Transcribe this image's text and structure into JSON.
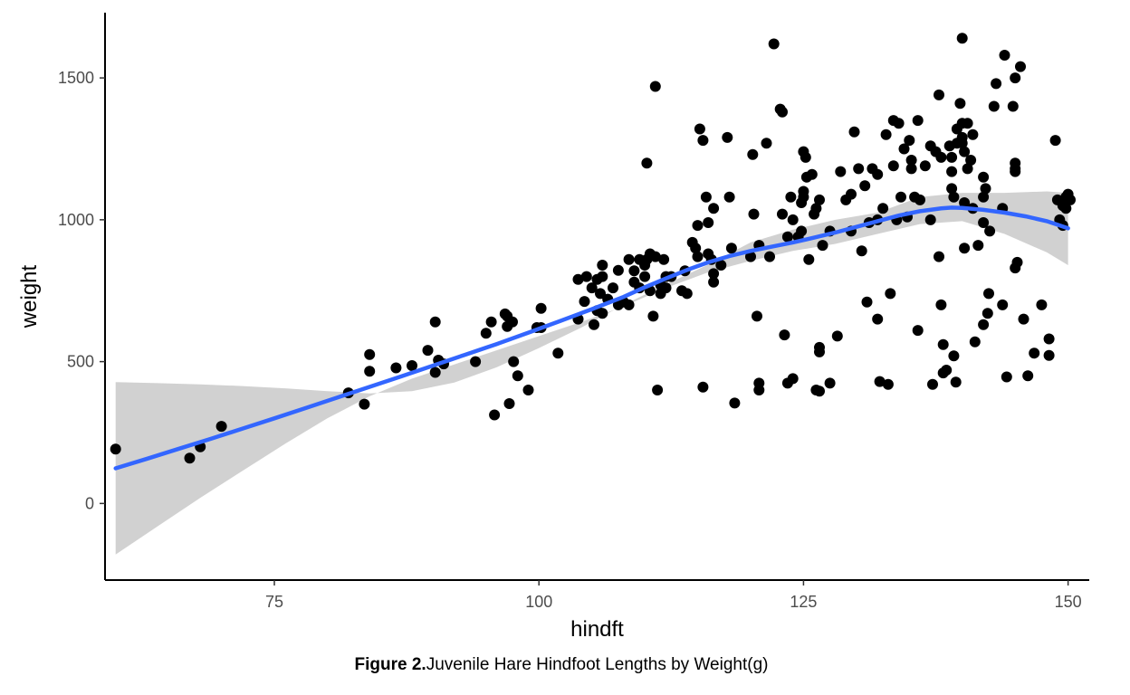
{
  "chart_data": {
    "type": "scatter",
    "xlabel": "hindft",
    "ylabel": "weight",
    "xlim": [
      59,
      152
    ],
    "ylim": [
      -270,
      1730
    ],
    "x_ticks": [
      75,
      100,
      125,
      150
    ],
    "y_ticks": [
      0,
      500,
      1000,
      1500
    ],
    "x_tick_labels": [
      "75",
      "100",
      "125",
      "150"
    ],
    "y_tick_labels": [
      "0",
      "500",
      "1000",
      "1500"
    ],
    "grid": false,
    "caption_bold": "Figure 2.",
    "caption_text": "Juvenile Hare Hindfoot Lengths by Weight(g)",
    "points_color": "#000000",
    "smooth_color": "#3366ff",
    "ribbon_color": "#bebebe",
    "points": [
      [
        60,
        192
      ],
      [
        67,
        160
      ],
      [
        68,
        200
      ],
      [
        70,
        272
      ],
      [
        82,
        390
      ],
      [
        83.5,
        350
      ],
      [
        84,
        525
      ],
      [
        84,
        466
      ],
      [
        86.5,
        478
      ],
      [
        88,
        486
      ],
      [
        89.5,
        540
      ],
      [
        90.2,
        640
      ],
      [
        90.2,
        462
      ],
      [
        90.5,
        505
      ],
      [
        91,
        492
      ],
      [
        94,
        500
      ],
      [
        95,
        600
      ],
      [
        95.5,
        640
      ],
      [
        95.8,
        312
      ],
      [
        96.8,
        668
      ],
      [
        97,
        660
      ],
      [
        97.5,
        640
      ],
      [
        97,
        624
      ],
      [
        97.2,
        352
      ],
      [
        97.6,
        500
      ],
      [
        98,
        450
      ],
      [
        99,
        400
      ],
      [
        99.8,
        620
      ],
      [
        100.2,
        688
      ],
      [
        100.2,
        620
      ],
      [
        101.8,
        530
      ],
      [
        103.7,
        650
      ],
      [
        103.7,
        790
      ],
      [
        104.3,
        712
      ],
      [
        104.5,
        800
      ],
      [
        105,
        760
      ],
      [
        105.5,
        790
      ],
      [
        105.5,
        680
      ],
      [
        105.2,
        630
      ],
      [
        105.8,
        740
      ],
      [
        106,
        670
      ],
      [
        106,
        840
      ],
      [
        106,
        800
      ],
      [
        106.5,
        720
      ],
      [
        107,
        760
      ],
      [
        107.5,
        822
      ],
      [
        107.5,
        700
      ],
      [
        108,
        710
      ],
      [
        108.5,
        860
      ],
      [
        108.5,
        700
      ],
      [
        109,
        820
      ],
      [
        109,
        780
      ],
      [
        109.5,
        860
      ],
      [
        109.5,
        760
      ],
      [
        110,
        840
      ],
      [
        110,
        800
      ],
      [
        110.2,
        860
      ],
      [
        110.2,
        1200
      ],
      [
        110.5,
        750
      ],
      [
        110.5,
        880
      ],
      [
        110.8,
        660
      ],
      [
        111,
        1470
      ],
      [
        111,
        870
      ],
      [
        111.2,
        400
      ],
      [
        111.5,
        740
      ],
      [
        111.5,
        770
      ],
      [
        111.8,
        860
      ],
      [
        112,
        800
      ],
      [
        112,
        760
      ],
      [
        112.5,
        800
      ],
      [
        113.5,
        750
      ],
      [
        113.8,
        820
      ],
      [
        114,
        740
      ],
      [
        114.5,
        920
      ],
      [
        114.8,
        900
      ],
      [
        115,
        870
      ],
      [
        115.2,
        1320
      ],
      [
        115,
        980
      ],
      [
        115.5,
        1280
      ],
      [
        115.5,
        410
      ],
      [
        115.8,
        1080
      ],
      [
        116,
        990
      ],
      [
        116,
        880
      ],
      [
        116.3,
        860
      ],
      [
        116.5,
        780
      ],
      [
        116.5,
        810
      ],
      [
        116.5,
        1040
      ],
      [
        117.2,
        840
      ],
      [
        117.8,
        1290
      ],
      [
        118,
        1080
      ],
      [
        118.2,
        900
      ],
      [
        118.5,
        354
      ],
      [
        120,
        870
      ],
      [
        120.2,
        1230
      ],
      [
        120.3,
        1020
      ],
      [
        120.6,
        660
      ],
      [
        120.8,
        910
      ],
      [
        120.8,
        424
      ],
      [
        120.8,
        400
      ],
      [
        121.5,
        1270
      ],
      [
        121.8,
        870
      ],
      [
        122.2,
        1620
      ],
      [
        122.8,
        1390
      ],
      [
        123,
        1020
      ],
      [
        123,
        1380
      ],
      [
        123.2,
        594
      ],
      [
        123.5,
        940
      ],
      [
        123.5,
        424
      ],
      [
        123.8,
        1080
      ],
      [
        124,
        1000
      ],
      [
        124,
        440
      ],
      [
        124.5,
        940
      ],
      [
        124.8,
        960
      ],
      [
        124.8,
        1060
      ],
      [
        125,
        1080
      ],
      [
        125,
        1100
      ],
      [
        125,
        1240
      ],
      [
        125.2,
        1220
      ],
      [
        125.3,
        1150
      ],
      [
        125.5,
        860
      ],
      [
        125.8,
        1160
      ],
      [
        126,
        1020
      ],
      [
        126.2,
        1040
      ],
      [
        126.5,
        1070
      ],
      [
        126.2,
        400
      ],
      [
        126.5,
        396
      ],
      [
        126.5,
        550
      ],
      [
        126.5,
        534
      ],
      [
        126.8,
        910
      ],
      [
        127.5,
        960
      ],
      [
        127.5,
        424
      ],
      [
        128.2,
        590
      ],
      [
        128.5,
        1170
      ],
      [
        129,
        1070
      ],
      [
        129.5,
        1090
      ],
      [
        129.5,
        960
      ],
      [
        129.8,
        1310
      ],
      [
        130.2,
        1180
      ],
      [
        130.5,
        890
      ],
      [
        130.8,
        1120
      ],
      [
        131,
        710
      ],
      [
        131.2,
        990
      ],
      [
        131.5,
        1180
      ],
      [
        132,
        1160
      ],
      [
        132,
        1000
      ],
      [
        132,
        650
      ],
      [
        132.2,
        430
      ],
      [
        132.5,
        1040
      ],
      [
        132.8,
        1300
      ],
      [
        133,
        420
      ],
      [
        133.2,
        740
      ],
      [
        133.5,
        1350
      ],
      [
        133.5,
        1190
      ],
      [
        133.8,
        1000
      ],
      [
        134,
        1340
      ],
      [
        134.2,
        1080
      ],
      [
        134.5,
        1250
      ],
      [
        134.8,
        1010
      ],
      [
        135,
        1280
      ],
      [
        135.2,
        1210
      ],
      [
        135.2,
        1180
      ],
      [
        135.5,
        1080
      ],
      [
        135.8,
        1350
      ],
      [
        135.8,
        610
      ],
      [
        136,
        1070
      ],
      [
        136.5,
        1190
      ],
      [
        137,
        1260
      ],
      [
        137,
        1000
      ],
      [
        137.2,
        420
      ],
      [
        137.5,
        1240
      ],
      [
        137.8,
        1440
      ],
      [
        137.8,
        870
      ],
      [
        138,
        1220
      ],
      [
        138,
        700
      ],
      [
        138.2,
        560
      ],
      [
        138.2,
        460
      ],
      [
        138.5,
        470
      ],
      [
        138.8,
        1260
      ],
      [
        139,
        1220
      ],
      [
        139,
        1170
      ],
      [
        139,
        1110
      ],
      [
        139.2,
        1080
      ],
      [
        139.2,
        520
      ],
      [
        139.4,
        428
      ],
      [
        139.5,
        1320
      ],
      [
        139.5,
        1270
      ],
      [
        139.8,
        1410
      ],
      [
        140,
        1640
      ],
      [
        140,
        1340
      ],
      [
        140,
        1290
      ],
      [
        140,
        1270
      ],
      [
        140.2,
        1240
      ],
      [
        140.2,
        1060
      ],
      [
        140.2,
        900
      ],
      [
        140.5,
        1340
      ],
      [
        140.5,
        1180
      ],
      [
        140.8,
        1210
      ],
      [
        141,
        1300
      ],
      [
        141,
        1040
      ],
      [
        141.2,
        570
      ],
      [
        141.5,
        910
      ],
      [
        142,
        1080
      ],
      [
        142,
        1150
      ],
      [
        142,
        990
      ],
      [
        142,
        630
      ],
      [
        142.2,
        1110
      ],
      [
        142.4,
        670
      ],
      [
        142.5,
        740
      ],
      [
        142.6,
        960
      ],
      [
        143,
        1400
      ],
      [
        143.2,
        1480
      ],
      [
        143.8,
        1040
      ],
      [
        143.8,
        700
      ],
      [
        144,
        1580
      ],
      [
        144.2,
        446
      ],
      [
        144.8,
        1400
      ],
      [
        145,
        1500
      ],
      [
        145,
        1200
      ],
      [
        145,
        1170
      ],
      [
        145,
        1180
      ],
      [
        145,
        830
      ],
      [
        145.2,
        850
      ],
      [
        145.5,
        1540
      ],
      [
        145.8,
        650
      ],
      [
        146.2,
        450
      ],
      [
        146.8,
        530
      ],
      [
        147.5,
        700
      ],
      [
        148.2,
        580
      ],
      [
        148.2,
        522
      ],
      [
        148.8,
        1280
      ],
      [
        149,
        1070
      ],
      [
        149.2,
        1000
      ],
      [
        149.5,
        980
      ],
      [
        149.5,
        1050
      ],
      [
        149.8,
        1080
      ],
      [
        149.8,
        1040
      ],
      [
        150,
        1090
      ],
      [
        150.2,
        1070
      ]
    ],
    "smooth_line": [
      [
        60,
        124
      ],
      [
        63,
        158
      ],
      [
        66,
        193
      ],
      [
        69,
        228
      ],
      [
        72,
        264
      ],
      [
        75,
        300
      ],
      [
        78,
        337
      ],
      [
        81,
        374
      ],
      [
        84,
        411
      ],
      [
        87,
        448
      ],
      [
        90,
        486
      ],
      [
        93,
        524
      ],
      [
        96,
        562
      ],
      [
        99,
        602
      ],
      [
        102,
        643
      ],
      [
        105,
        685
      ],
      [
        108,
        728
      ],
      [
        110,
        762
      ],
      [
        112,
        793
      ],
      [
        114,
        823
      ],
      [
        116,
        850
      ],
      [
        118,
        872
      ],
      [
        120,
        890
      ],
      [
        122,
        905
      ],
      [
        124,
        920
      ],
      [
        126,
        937
      ],
      [
        128,
        955
      ],
      [
        130,
        975
      ],
      [
        132,
        995
      ],
      [
        134,
        1015
      ],
      [
        136,
        1030
      ],
      [
        138,
        1040
      ],
      [
        139,
        1043
      ],
      [
        140,
        1042
      ],
      [
        142,
        1035
      ],
      [
        144,
        1025
      ],
      [
        146,
        1012
      ],
      [
        148,
        995
      ],
      [
        150,
        970
      ]
    ],
    "ribbon": [
      [
        60,
        -180,
        428
      ],
      [
        64,
        -80,
        424
      ],
      [
        68,
        20,
        420
      ],
      [
        72,
        115,
        414
      ],
      [
        76,
        210,
        406
      ],
      [
        80,
        300,
        396
      ],
      [
        84,
        378,
        388
      ],
      [
        88,
        440,
        396
      ],
      [
        92,
        490,
        426
      ],
      [
        96,
        540,
        480
      ],
      [
        100,
        590,
        548
      ],
      [
        104,
        640,
        620
      ],
      [
        108,
        695,
        700
      ],
      [
        112,
        760,
        772
      ],
      [
        116,
        815,
        842
      ],
      [
        120,
        855,
        920
      ],
      [
        124,
        890,
        965
      ],
      [
        128,
        915,
        1000
      ],
      [
        132,
        950,
        1025
      ],
      [
        136,
        985,
        1080
      ],
      [
        140,
        995,
        1095
      ],
      [
        144,
        950,
        1095
      ],
      [
        148,
        885,
        1100
      ],
      [
        150,
        840,
        1095
      ]
    ]
  }
}
